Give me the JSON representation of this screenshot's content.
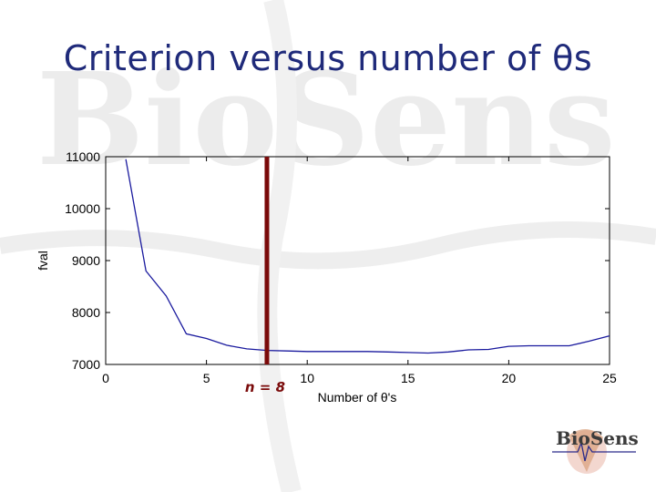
{
  "slide": {
    "title": "Criterion versus number of θs"
  },
  "annotation": {
    "marker_label": "n = 8",
    "marker_x": 8
  },
  "logo": {
    "text": "BioSens"
  },
  "colors": {
    "title": "#1f2a7a",
    "line": "#1a1a9e",
    "marker": "#7a0a0a",
    "watermark": "#e6e6e6"
  },
  "chart_data": {
    "type": "line",
    "xlabel": "Number of θ's",
    "ylabel": "fval",
    "xlim": [
      0,
      25
    ],
    "ylim": [
      7000,
      11000
    ],
    "xticks": [
      "0",
      "5",
      "10",
      "15",
      "20",
      "25"
    ],
    "yticks": [
      "7000",
      "8000",
      "9000",
      "10000",
      "11000"
    ],
    "x": [
      1,
      2,
      3,
      4,
      5,
      6,
      7,
      8,
      9,
      10,
      11,
      12,
      13,
      14,
      15,
      16,
      17,
      18,
      19,
      20,
      21,
      22,
      23,
      24,
      25
    ],
    "values": [
      10950,
      8800,
      8320,
      7590,
      7500,
      7370,
      7300,
      7270,
      7260,
      7250,
      7250,
      7250,
      7250,
      7240,
      7230,
      7220,
      7240,
      7280,
      7290,
      7350,
      7360,
      7360,
      7360,
      7450,
      7550
    ]
  }
}
